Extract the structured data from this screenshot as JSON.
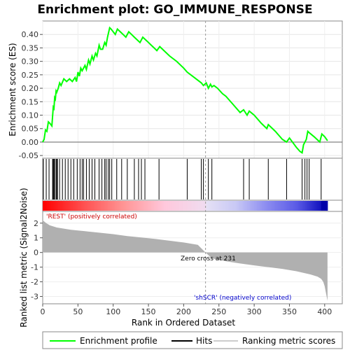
{
  "chart_data": {
    "type": "line",
    "title": "Enrichment plot: GO_IMMUNE_RESPONSE",
    "xlabel": "Rank in Ordered Dataset",
    "ylabel_top": "Enrichment score (ES)",
    "ylabel_bottom": "Ranked list metric (Signal2Noise)",
    "xlim": [
      0,
      425
    ],
    "es_ylim": [
      -0.06,
      0.45
    ],
    "metric_ylim": [
      -3.5,
      2.8
    ],
    "x_ticks": [
      0,
      50,
      100,
      150,
      200,
      250,
      300,
      350,
      400
    ],
    "es_ticks": [
      "0.40",
      "0.35",
      "0.30",
      "0.25",
      "0.20",
      "0.15",
      "0.10",
      "0.05",
      "0.00",
      "-0.05"
    ],
    "es_tick_values": [
      0.4,
      0.35,
      0.3,
      0.25,
      0.2,
      0.15,
      0.1,
      0.05,
      0.0,
      -0.05
    ],
    "metric_ticks": [
      "2",
      "1",
      "0",
      "-1",
      "-2",
      "-3"
    ],
    "metric_tick_values": [
      2,
      1,
      0,
      -1,
      -2,
      -3
    ],
    "enrichment_profile": {
      "x": [
        0,
        2,
        4,
        6,
        8,
        10,
        13,
        15,
        16,
        17,
        18,
        19,
        20,
        22,
        24,
        26,
        30,
        34,
        38,
        42,
        46,
        48,
        50,
        52,
        54,
        56,
        60,
        62,
        65,
        67,
        70,
        72,
        75,
        77,
        80,
        82,
        85,
        88,
        90,
        92,
        95,
        97,
        100,
        103,
        106,
        110,
        114,
        118,
        122,
        126,
        130,
        134,
        138,
        142,
        146,
        150,
        154,
        158,
        162,
        166,
        170,
        180,
        190,
        200,
        205,
        215,
        225,
        228,
        232,
        235,
        238,
        240,
        243,
        248,
        255,
        260,
        270,
        280,
        285,
        290,
        293,
        300,
        310,
        318,
        320,
        330,
        340,
        346,
        350,
        360,
        365,
        368,
        370,
        372,
        374,
        376,
        378,
        385,
        393,
        396,
        400,
        404
      ],
      "y": [
        0.0,
        0.01,
        0.045,
        0.04,
        0.075,
        0.07,
        0.06,
        0.13,
        0.125,
        0.165,
        0.16,
        0.19,
        0.185,
        0.2,
        0.22,
        0.21,
        0.235,
        0.225,
        0.235,
        0.225,
        0.24,
        0.225,
        0.26,
        0.245,
        0.275,
        0.265,
        0.285,
        0.27,
        0.305,
        0.29,
        0.32,
        0.305,
        0.33,
        0.32,
        0.36,
        0.345,
        0.345,
        0.37,
        0.36,
        0.39,
        0.425,
        0.42,
        0.41,
        0.4,
        0.42,
        0.41,
        0.4,
        0.39,
        0.41,
        0.4,
        0.39,
        0.38,
        0.37,
        0.39,
        0.38,
        0.37,
        0.36,
        0.35,
        0.34,
        0.355,
        0.345,
        0.32,
        0.3,
        0.275,
        0.26,
        0.24,
        0.22,
        0.21,
        0.22,
        0.2,
        0.215,
        0.205,
        0.21,
        0.2,
        0.18,
        0.17,
        0.14,
        0.11,
        0.12,
        0.1,
        0.115,
        0.1,
        0.07,
        0.05,
        0.065,
        0.04,
        0.01,
        0.0,
        0.015,
        -0.02,
        -0.035,
        -0.04,
        -0.01,
        0.0,
        0.01,
        0.04,
        0.035,
        0.02,
        0.0,
        0.03,
        0.02,
        0.005
      ]
    },
    "hits": [
      1,
      5,
      9,
      14,
      15,
      16,
      17,
      19,
      20,
      21,
      24,
      28,
      32,
      36,
      40,
      44,
      49,
      53,
      56,
      58,
      62,
      66,
      70,
      74,
      80,
      84,
      88,
      90,
      93,
      95,
      98,
      105,
      112,
      120,
      130,
      136,
      140,
      145,
      165,
      205,
      225,
      228,
      235,
      240,
      285,
      293,
      320,
      346,
      368,
      372,
      375,
      378,
      395
    ],
    "metric": {
      "x": [
        0,
        5,
        10,
        20,
        40,
        60,
        80,
        100,
        120,
        140,
        160,
        180,
        200,
        220,
        231,
        240,
        260,
        280,
        300,
        320,
        340,
        360,
        380,
        390,
        395,
        398,
        400,
        402,
        404
      ],
      "y": [
        2.2,
        2.0,
        1.85,
        1.7,
        1.55,
        1.45,
        1.35,
        1.25,
        1.12,
        1.02,
        0.92,
        0.8,
        0.68,
        0.52,
        0.0,
        -0.4,
        -0.6,
        -0.75,
        -0.88,
        -1.0,
        -1.12,
        -1.28,
        -1.5,
        -1.65,
        -1.8,
        -2.0,
        -2.3,
        -2.8,
        -3.3
      ]
    },
    "zero_cross_rank": 231,
    "annotations": {
      "positive": "'REST' (positively correlated)",
      "negative": "'shSCR' (negatively correlated)",
      "zero_cross": "Zero cross at 231"
    },
    "colors": {
      "profile": "#00ff00",
      "hits": "#000000",
      "metric_fill": "#b0b0b0",
      "positive_text": "#cc0000",
      "negative_text": "#0000cc",
      "pos_strong": "#ff0000",
      "neg_strong": "#0000aa"
    },
    "legend": [
      {
        "label": "Enrichment profile",
        "kind": "profile"
      },
      {
        "label": "Hits",
        "kind": "hits"
      },
      {
        "label": "Ranking metric scores",
        "kind": "metric"
      }
    ]
  }
}
